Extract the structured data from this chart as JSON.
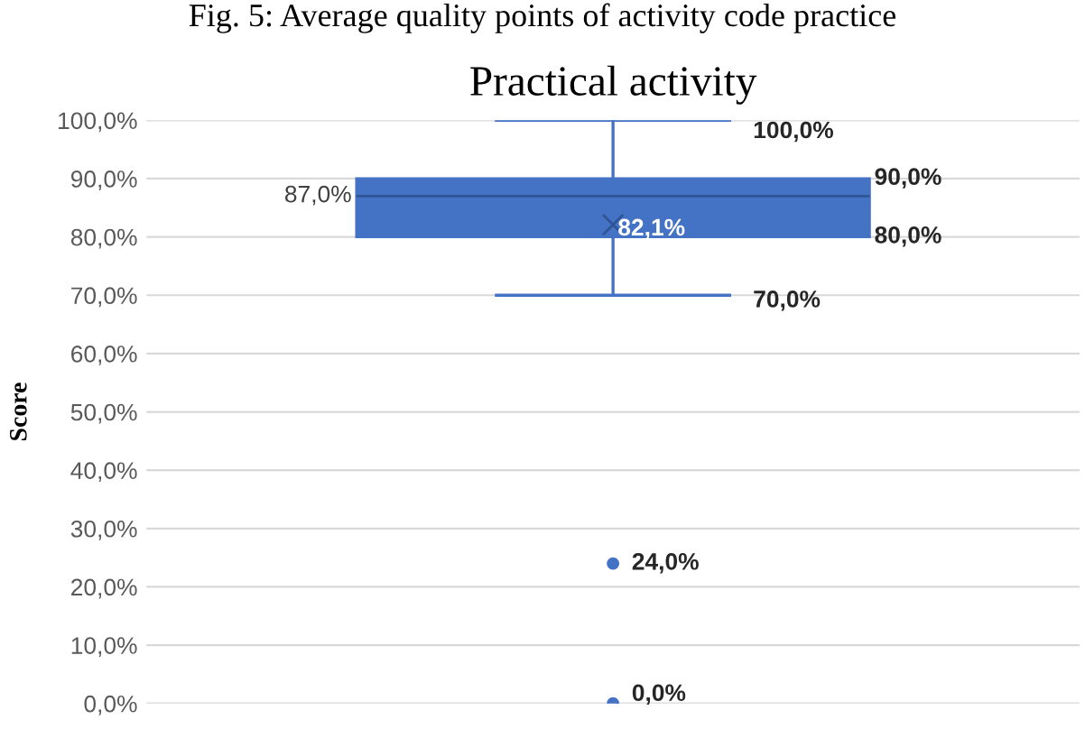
{
  "chart_data": {
    "type": "box",
    "title": "Practical activity",
    "ylabel": "Score",
    "categories": [
      null
    ],
    "boxes": [
      {
        "low": 70,
        "q1": 80,
        "median": 87,
        "q3": 90,
        "high": 100,
        "mean": 82.1,
        "outliers": [
          24,
          0
        ]
      }
    ],
    "color": "#4472c4",
    "ylim": [
      0,
      100
    ],
    "yticks": [
      {
        "value": 0,
        "label": "0,0%"
      },
      {
        "value": 10,
        "label": "10,0%"
      },
      {
        "value": 20,
        "label": "20,0%"
      },
      {
        "value": 30,
        "label": "30,0%"
      },
      {
        "value": 40,
        "label": "40,0%"
      },
      {
        "value": 50,
        "label": "50,0%"
      },
      {
        "value": 60,
        "label": "60,0%"
      },
      {
        "value": 70,
        "label": "70,0%"
      },
      {
        "value": 80,
        "label": "80,0%"
      },
      {
        "value": 90,
        "label": "90,0%"
      },
      {
        "value": 100,
        "label": "100,0%"
      }
    ],
    "grid": "y",
    "annotations": [
      "Fig. 5: Average quality points of activity code practice",
      "100,0%",
      "90,0%",
      "87,0%",
      "82,1%",
      "80,0%",
      "70,0%",
      "24,0%",
      "0,0%"
    ]
  }
}
